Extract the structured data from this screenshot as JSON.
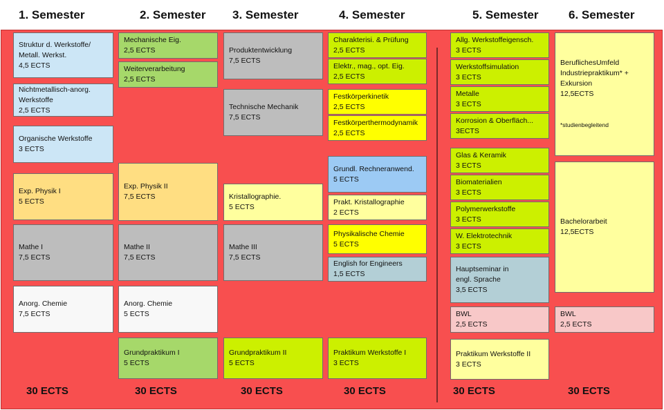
{
  "colors": {
    "background": "#f84f4f",
    "blue": "#cce6f6",
    "green": "#a6d86a",
    "gray": "#bdbdbd",
    "lime": "#ccf000",
    "yellow": "#ffff00",
    "orange": "#ffde82",
    "white": "#f8f8f8",
    "lightblue": "#9ccaf4",
    "teal": "#b3cfd6",
    "paleyellow": "#ffff9e",
    "pink": "#f8c8c8"
  },
  "semesters": [
    {
      "title": "1. Semester",
      "total": "30 ECTS",
      "modules": [
        {
          "title": "Struktur d. Werkstoffe/\nMetall. Werkst.",
          "ects": "4,5 ECTS",
          "color": "#cce6f6"
        },
        {
          "title": "Nichtmetallisch-anorg.\nWerkstoffe",
          "ects": "2,5 ECTS",
          "color": "#cce6f6"
        },
        {
          "title": "Organische Werkstoffe",
          "ects": "3 ECTS",
          "color": "#cce6f6"
        },
        {
          "title": "Exp. Physik I",
          "ects": "5 ECTS",
          "color": "#ffde82"
        },
        {
          "title": "Mathe I",
          "ects": "7,5 ECTS",
          "color": "#bdbdbd"
        },
        {
          "title": "Anorg. Chemie",
          "ects": "7,5 ECTS",
          "color": "#f8f8f8"
        }
      ]
    },
    {
      "title": "2. Semester",
      "total": "30 ECTS",
      "modules": [
        {
          "title": "Mechanische Eig.",
          "ects": "2,5 ECTS",
          "color": "#a6d86a"
        },
        {
          "title": "Weiterverarbeitung",
          "ects": "2,5 ECTS",
          "color": "#a6d86a"
        },
        {
          "title": "Exp. Physik II",
          "ects": "7,5 ECTS",
          "color": "#ffde82"
        },
        {
          "title": "Mathe II",
          "ects": "7,5 ECTS",
          "color": "#bdbdbd"
        },
        {
          "title": "Anorg. Chemie",
          "ects": "5 ECTS",
          "color": "#f8f8f8"
        },
        {
          "title": "Grundpraktikum I",
          "ects": "5 ECTS",
          "color": "#a6d86a"
        }
      ]
    },
    {
      "title": "3. Semester",
      "total": "30 ECTS",
      "modules": [
        {
          "title": "Produktentwicklung",
          "ects": "7,5 ECTS",
          "color": "#bdbdbd"
        },
        {
          "title": "Technische Mechanik",
          "ects": "7,5 ECTS",
          "color": "#bdbdbd"
        },
        {
          "title": "Kristallographie.",
          "ects": "5 ECTS",
          "color": "#ffff9e"
        },
        {
          "title": "Mathe III",
          "ects": "7,5 ECTS",
          "color": "#bdbdbd"
        },
        {
          "title": "Grundpraktikum II",
          "ects": "5 ECTS",
          "color": "#ccf000"
        }
      ]
    },
    {
      "title": "4. Semester",
      "total": "30 ECTS",
      "modules": [
        {
          "title": "Charakterisi. & Prüfung",
          "ects": "2,5 ECTS",
          "color": "#ccf000"
        },
        {
          "title": "Elektr., mag., opt. Eig.",
          "ects": "2,5 ECTS",
          "color": "#ccf000"
        },
        {
          "title": "Festkörperkinetik",
          "ects": "2,5 ECTS",
          "color": "#ffff00"
        },
        {
          "title": "Festkörperthermodynamik",
          "ects": "2,5 ECTS",
          "color": "#ffff00"
        },
        {
          "title": "Grundl. Rechneranwend.",
          "ects": "5 ECTS",
          "color": "#9ccaf4"
        },
        {
          "title": "Prakt. Kristallographie",
          "ects": "2 ECTS",
          "color": "#ffff9e"
        },
        {
          "title": "Physikalische Chemie",
          "ects": "5 ECTS",
          "color": "#ffff00"
        },
        {
          "title": "English for Engineers",
          "ects": "1,5 ECTS",
          "color": "#b3cfd6"
        },
        {
          "title": "Praktikum Werkstoffe I",
          "ects": "3 ECTS",
          "color": "#ccf000"
        }
      ]
    },
    {
      "title": "5. Semester",
      "total": "30 ECTS",
      "modules": [
        {
          "title": "Allg. Werkstoffeigensch.",
          "ects": "3 ECTS",
          "color": "#ccf000"
        },
        {
          "title": "Werkstoffsimulation",
          "ects": "3 ECTS",
          "color": "#ccf000"
        },
        {
          "title": "Metalle",
          "ects": "3 ECTS",
          "color": "#ccf000"
        },
        {
          "title": "Korrosion & Oberfläch...",
          "ects": "3ECTS",
          "color": "#ccf000"
        },
        {
          "title": "Glas & Keramik",
          "ects": "3 ECTS",
          "color": "#ccf000"
        },
        {
          "title": "Biomaterialien",
          "ects": "3 ECTS",
          "color": "#ccf000"
        },
        {
          "title": "Polymerwerkstoffe",
          "ects": "3 ECTS",
          "color": "#ccf000"
        },
        {
          "title": "W. Elektrotechnik",
          "ects": "3 ECTS",
          "color": "#ccf000"
        },
        {
          "title": "Hauptseminar in\nengl. Sprache",
          "ects": "3,5 ECTS",
          "color": "#b3cfd6"
        },
        {
          "title": "BWL",
          "ects": "2,5 ECTS",
          "color": "#f8c8c8"
        },
        {
          "title": "Praktikum Werkstoffe II",
          "ects": "3 ECTS",
          "color": "#ffff9e"
        }
      ]
    },
    {
      "title": "6. Semester",
      "total": "30 ECTS",
      "modules": [
        {
          "title": "BeruflichesUmfeld\nIndustriepraktikum* +\nExkursion",
          "ects": "12,5ECTS",
          "note": "*studienbegleitend",
          "color": "#ffff9e"
        },
        {
          "title": "Bachelorarbeit",
          "ects": "12,5ECTS",
          "color": "#ffff9e"
        },
        {
          "title": "BWL",
          "ects": "2,5 ECTS",
          "color": "#f8c8c8"
        }
      ]
    }
  ]
}
